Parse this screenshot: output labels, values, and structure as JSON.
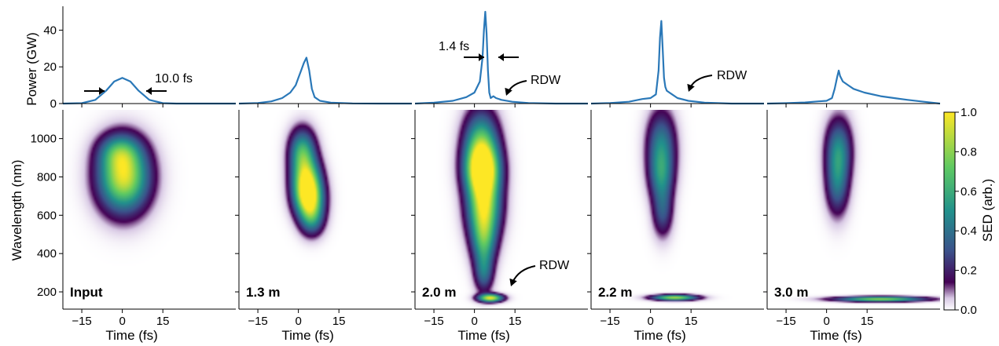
{
  "figure": {
    "power_ylabel": "Power (GW)",
    "wavelength_ylabel": "Wavelength (nm)",
    "time_xlabel": "Time (fs)",
    "colorbar_label": "SED (arb.)"
  },
  "chart_data": {
    "type": "line+heatmap",
    "x_axis": {
      "label": "Time (fs)",
      "ticks": [
        -15,
        0,
        15
      ],
      "lim": [
        -22,
        42
      ]
    },
    "power_axis": {
      "label": "Power (GW)",
      "ticks": [
        0,
        20,
        40
      ],
      "lim": [
        0,
        53
      ]
    },
    "wavelength_axis": {
      "label": "Wavelength (nm)",
      "ticks": [
        200,
        400,
        600,
        800,
        1000
      ],
      "lim": [
        110,
        1150
      ]
    },
    "colorbar": {
      "label": "SED (arb.)",
      "ticks": [
        "0.0",
        "0.2",
        "0.4",
        "0.6",
        "0.8",
        "1.0"
      ],
      "range": [
        0,
        1
      ],
      "colormap": "viridis"
    },
    "line_color": "#2a78b8",
    "panels": [
      {
        "distance": "Input",
        "power": {
          "x": [
            -22,
            -15,
            -10,
            -6,
            -3,
            0,
            3,
            6,
            10,
            15,
            20,
            30,
            42
          ],
          "y": [
            0,
            0.2,
            2,
            7,
            12,
            14,
            12,
            7,
            2,
            0.2,
            0,
            0,
            0
          ]
        },
        "annotations": [
          {
            "text": "10.0 fs",
            "kind": "width"
          }
        ],
        "sed_blobs": [
          {
            "t": 0.5,
            "wl": 800,
            "st": 6.2,
            "sw": 120,
            "amp": 0.95
          },
          {
            "t": -1.0,
            "wl": 930,
            "st": 5.0,
            "sw": 60,
            "amp": 0.35
          }
        ]
      },
      {
        "distance": "1.3 m",
        "power": {
          "x": [
            -22,
            -15,
            -10,
            -6,
            -3,
            -1,
            0,
            1,
            2,
            3,
            4,
            5,
            6,
            8,
            12,
            20,
            30,
            42
          ],
          "y": [
            0,
            0.3,
            1.2,
            3,
            6,
            10,
            14,
            18,
            22,
            25,
            18,
            8,
            3.5,
            1.5,
            0.5,
            0.1,
            0,
            0
          ]
        },
        "annotations": [],
        "sed_blobs": [
          {
            "t": 1.5,
            "wl": 930,
            "st": 3.2,
            "sw": 80,
            "amp": 0.6
          },
          {
            "t": 3.0,
            "wl": 780,
            "st": 3.5,
            "sw": 80,
            "amp": 0.85
          },
          {
            "t": 4.0,
            "wl": 680,
            "st": 3.5,
            "sw": 70,
            "amp": 0.8
          },
          {
            "t": 5.0,
            "wl": 580,
            "st": 3.0,
            "sw": 60,
            "amp": 0.4
          }
        ]
      },
      {
        "distance": "2.0 m",
        "power": {
          "x": [
            -22,
            -15,
            -8,
            -3,
            0,
            2,
            3,
            3.5,
            4,
            4.5,
            5,
            5.5,
            6,
            7,
            8,
            10,
            14,
            20,
            30,
            42
          ],
          "y": [
            0,
            0.5,
            1.5,
            3.5,
            6,
            12,
            25,
            40,
            50,
            38,
            18,
            6,
            3,
            4,
            3,
            2,
            1,
            0.3,
            0,
            0
          ]
        },
        "annotations": [
          {
            "text": "1.4 fs",
            "kind": "width"
          },
          {
            "text": "RDW",
            "kind": "arrow"
          },
          {
            "text": "RDW",
            "kind": "arrow"
          }
        ],
        "sed_blobs": [
          {
            "t": 2.5,
            "wl": 960,
            "st": 4.2,
            "sw": 120,
            "amp": 0.7
          },
          {
            "t": 3.0,
            "wl": 830,
            "st": 4.2,
            "sw": 90,
            "amp": 0.95
          },
          {
            "t": 3.5,
            "wl": 640,
            "st": 4.0,
            "sw": 110,
            "amp": 0.88
          },
          {
            "t": 3.5,
            "wl": 460,
            "st": 3.0,
            "sw": 90,
            "amp": 0.5
          },
          {
            "t": 3.5,
            "wl": 300,
            "st": 2.3,
            "sw": 70,
            "amp": 0.35
          },
          {
            "t": 6.0,
            "wl": 168,
            "st": 3.0,
            "sw": 14,
            "amp": 0.95
          }
        ]
      },
      {
        "distance": "2.2 m",
        "power": {
          "x": [
            -22,
            -15,
            -8,
            -3,
            0,
            2,
            3,
            3.5,
            4,
            4.5,
            5,
            5.5,
            6,
            7,
            8,
            10,
            14,
            20,
            30,
            42
          ],
          "y": [
            0,
            0.3,
            1,
            2.5,
            3,
            5,
            18,
            36,
            45,
            30,
            14,
            9,
            7,
            6,
            5,
            3,
            1.5,
            0.5,
            0,
            0
          ]
        },
        "annotations": [
          {
            "text": "RDW",
            "kind": "arrow"
          }
        ],
        "sed_blobs": [
          {
            "t": 4.0,
            "wl": 960,
            "st": 3.5,
            "sw": 120,
            "amp": 0.45
          },
          {
            "t": 4.0,
            "wl": 800,
            "st": 3.0,
            "sw": 90,
            "amp": 0.35
          },
          {
            "t": 4.5,
            "wl": 620,
            "st": 2.5,
            "sw": 90,
            "amp": 0.3
          },
          {
            "t": 9.0,
            "wl": 170,
            "st": 5.5,
            "sw": 10,
            "amp": 0.85
          }
        ]
      },
      {
        "distance": "3.0 m",
        "power": {
          "x": [
            -22,
            -15,
            -8,
            -3,
            0,
            2,
            3,
            4,
            4.5,
            5,
            6,
            8,
            10,
            14,
            20,
            25,
            30,
            36,
            42
          ],
          "y": [
            0,
            0.2,
            0.6,
            1.2,
            1.5,
            3,
            8,
            15,
            18,
            15,
            12,
            10,
            8,
            6,
            4,
            3,
            2,
            1,
            0
          ]
        },
        "annotations": [],
        "sed_blobs": [
          {
            "t": 4.5,
            "wl": 940,
            "st": 3.2,
            "sw": 110,
            "amp": 0.45
          },
          {
            "t": 4.0,
            "wl": 760,
            "st": 2.8,
            "sw": 110,
            "amp": 0.35
          },
          {
            "t": 20.0,
            "wl": 162,
            "st": 11.0,
            "sw": 9,
            "amp": 0.8
          }
        ]
      }
    ]
  }
}
